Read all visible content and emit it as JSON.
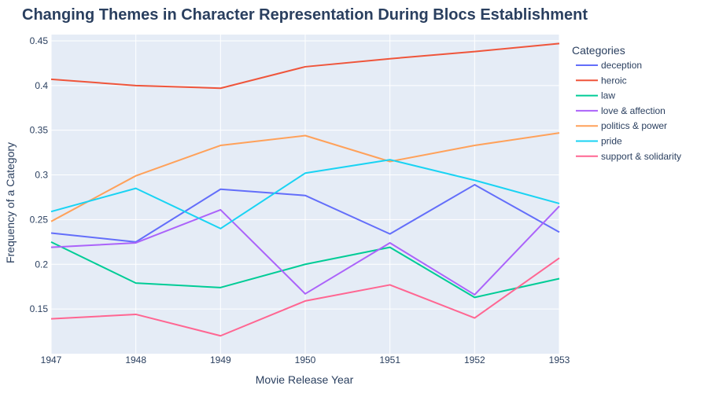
{
  "chart_data": {
    "type": "line",
    "title": "Changing Themes in Character Representation During Blocs Establishment",
    "xlabel": "Movie Release Year",
    "ylabel": "Frequency of a Category",
    "x": [
      1947,
      1948,
      1949,
      1950,
      1951,
      1952,
      1953
    ],
    "xlim": [
      1947,
      1953
    ],
    "ylim": [
      0.1,
      0.457
    ],
    "yticks": [
      0.15,
      0.2,
      0.25,
      0.3,
      0.35,
      0.4,
      0.45
    ],
    "ytick_labels": [
      "0.15",
      "0.2",
      "0.25",
      "0.3",
      "0.35",
      "0.4",
      "0.45"
    ],
    "xtick_labels": [
      "1947",
      "1948",
      "1949",
      "1950",
      "1951",
      "1952",
      "1953"
    ],
    "grid": true,
    "legend_title": "Categories",
    "legend_position": "right",
    "background": "#e5ecf6",
    "series": [
      {
        "name": "deception",
        "color": "#636efa",
        "values": [
          0.235,
          0.225,
          0.284,
          0.277,
          0.234,
          0.289,
          0.236
        ]
      },
      {
        "name": "heroic",
        "color": "#ef553b",
        "values": [
          0.407,
          0.4,
          0.397,
          0.421,
          0.43,
          0.438,
          0.447
        ]
      },
      {
        "name": "law",
        "color": "#00cc96",
        "values": [
          0.225,
          0.179,
          0.174,
          0.2,
          0.219,
          0.163,
          0.184
        ]
      },
      {
        "name": "love & affection",
        "color": "#ab63fa",
        "values": [
          0.219,
          0.224,
          0.261,
          0.167,
          0.224,
          0.166,
          0.265
        ]
      },
      {
        "name": "politics & power",
        "color": "#ffa15a",
        "values": [
          0.248,
          0.299,
          0.333,
          0.344,
          0.315,
          0.333,
          0.347
        ]
      },
      {
        "name": "pride",
        "color": "#19d3f3",
        "values": [
          0.259,
          0.285,
          0.24,
          0.302,
          0.317,
          0.294,
          0.268
        ]
      },
      {
        "name": "support & solidarity",
        "color": "#ff6692",
        "values": [
          0.139,
          0.144,
          0.12,
          0.159,
          0.177,
          0.14,
          0.207
        ]
      }
    ]
  }
}
